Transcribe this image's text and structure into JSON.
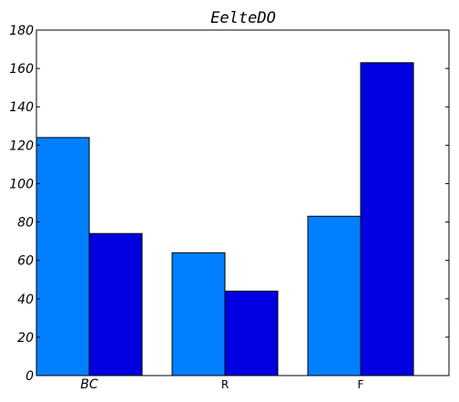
{
  "chart_data": {
    "type": "bar",
    "title": "EelteDO",
    "xlabel": "",
    "ylabel": "",
    "categories": [
      "BC",
      "R",
      "F"
    ],
    "category_italic": [
      true,
      false,
      false
    ],
    "series": [
      {
        "values": [
          124,
          64,
          83
        ],
        "color": "#0080ff"
      },
      {
        "values": [
          74,
          44,
          163
        ],
        "color": "#0000e0"
      }
    ],
    "ylim": [
      0,
      180
    ],
    "yticks": [
      0,
      20,
      40,
      60,
      80,
      100,
      120,
      140,
      160,
      180
    ],
    "grid": false,
    "legend": "none"
  }
}
